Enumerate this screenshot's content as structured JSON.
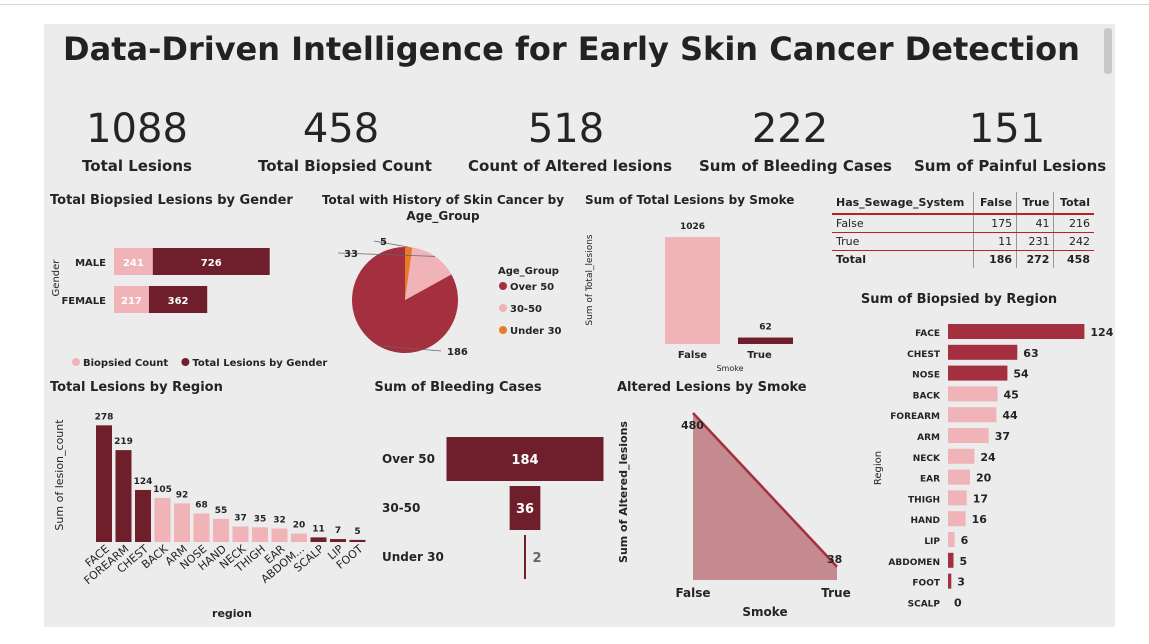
{
  "title": "Data-Driven Intelligence for Early Skin Cancer Detection",
  "kpis": [
    {
      "value": "1088",
      "label": "Total Lesions"
    },
    {
      "value": "458",
      "label": "Total Biopsied Count"
    },
    {
      "value": "518",
      "label": "Count of Altered lesions"
    },
    {
      "value": "222",
      "label": "Sum of Bleeding Cases"
    },
    {
      "value": "151",
      "label": "Sum of Painful Lesions"
    }
  ],
  "colors": {
    "dark": "#6e1f2b",
    "mid": "#a42f3e",
    "light": "#f0b4b8",
    "orange": "#e87b2a",
    "bgpanel": "#ececec"
  },
  "matrix": {
    "headers": [
      "Has_Sewage_System",
      "False",
      "True",
      "Total"
    ],
    "rows": [
      [
        "False",
        "175",
        "41",
        "216"
      ],
      [
        "True",
        "11",
        "231",
        "242"
      ],
      [
        "Total",
        "186",
        "272",
        "458"
      ]
    ]
  },
  "chart_data": [
    {
      "type": "bar",
      "title": "Total Biopsied Lesions by Gender",
      "ylabel": "Gender",
      "categories": [
        "MALE",
        "FEMALE"
      ],
      "series": [
        {
          "name": "Biopsied Count",
          "values": [
            241,
            217
          ],
          "color": "#f0b4b8"
        },
        {
          "name": "Total Lesions by Gender",
          "values": [
            726,
            362
          ],
          "color": "#6e1f2b"
        }
      ]
    },
    {
      "type": "pie",
      "title": "Total with History of Skin Cancer by Age_Group",
      "legend_title": "Age_Group",
      "labels": [
        "Over 50",
        "30-50",
        "Under 30"
      ],
      "values": [
        186,
        33,
        5
      ],
      "colors": [
        "#a42f3e",
        "#f0b4b8",
        "#e87b2a"
      ]
    },
    {
      "type": "bar",
      "title": "Sum of Total Lesions by Smoke",
      "xlabel": "Smoke",
      "ylabel": "Sum of Total_lesions",
      "categories": [
        "False",
        "True"
      ],
      "values": [
        1026,
        62
      ],
      "colors": [
        "#f0b4b8",
        "#6e1f2b"
      ]
    },
    {
      "type": "bar",
      "title": "Total Lesions by Region",
      "xlabel": "region",
      "ylabel": "Sum of lesion_count",
      "categories": [
        "FACE",
        "FOREARM",
        "CHEST",
        "BACK",
        "ARM",
        "NOSE",
        "HAND",
        "NECK",
        "THIGH",
        "EAR",
        "ABDOM...",
        "SCALP",
        "LIP",
        "FOOT"
      ],
      "values": [
        278,
        219,
        124,
        105,
        92,
        68,
        55,
        37,
        35,
        32,
        20,
        11,
        7,
        5
      ],
      "colors": [
        "#6e1f2b",
        "#6e1f2b",
        "#6e1f2b",
        "#f0b4b8",
        "#f0b4b8",
        "#f0b4b8",
        "#f0b4b8",
        "#f0b4b8",
        "#f0b4b8",
        "#f0b4b8",
        "#f0b4b8",
        "#6e1f2b",
        "#6e1f2b",
        "#6e1f2b"
      ]
    },
    {
      "type": "bar",
      "title": "Sum of Bleeding Cases",
      "categories": [
        "Over 50",
        "30-50",
        "Under 30"
      ],
      "values": [
        184,
        36,
        2
      ],
      "colors": [
        "#6e1f2b",
        "#6e1f2b",
        "#6e1f2b"
      ]
    },
    {
      "type": "area",
      "title": "Altered Lesions by Smoke",
      "xlabel": "Smoke",
      "ylabel": "Sum of Altered_lesions",
      "categories": [
        "False",
        "True"
      ],
      "values": [
        480,
        38
      ]
    },
    {
      "type": "bar",
      "title": "Sum of Biopsied by Region",
      "ylabel": "Region",
      "categories": [
        "FACE",
        "CHEST",
        "NOSE",
        "BACK",
        "FOREARM",
        "ARM",
        "NECK",
        "EAR",
        "THIGH",
        "HAND",
        "LIP",
        "ABDOMEN",
        "FOOT",
        "SCALP"
      ],
      "values": [
        124,
        63,
        54,
        45,
        44,
        37,
        24,
        20,
        17,
        16,
        6,
        5,
        3,
        0
      ],
      "colors": [
        "#a42f3e",
        "#a42f3e",
        "#a42f3e",
        "#f0b4b8",
        "#f0b4b8",
        "#f0b4b8",
        "#f0b4b8",
        "#f0b4b8",
        "#f0b4b8",
        "#f0b4b8",
        "#f0b4b8",
        "#a42f3e",
        "#a42f3e",
        "#a42f3e"
      ]
    }
  ]
}
